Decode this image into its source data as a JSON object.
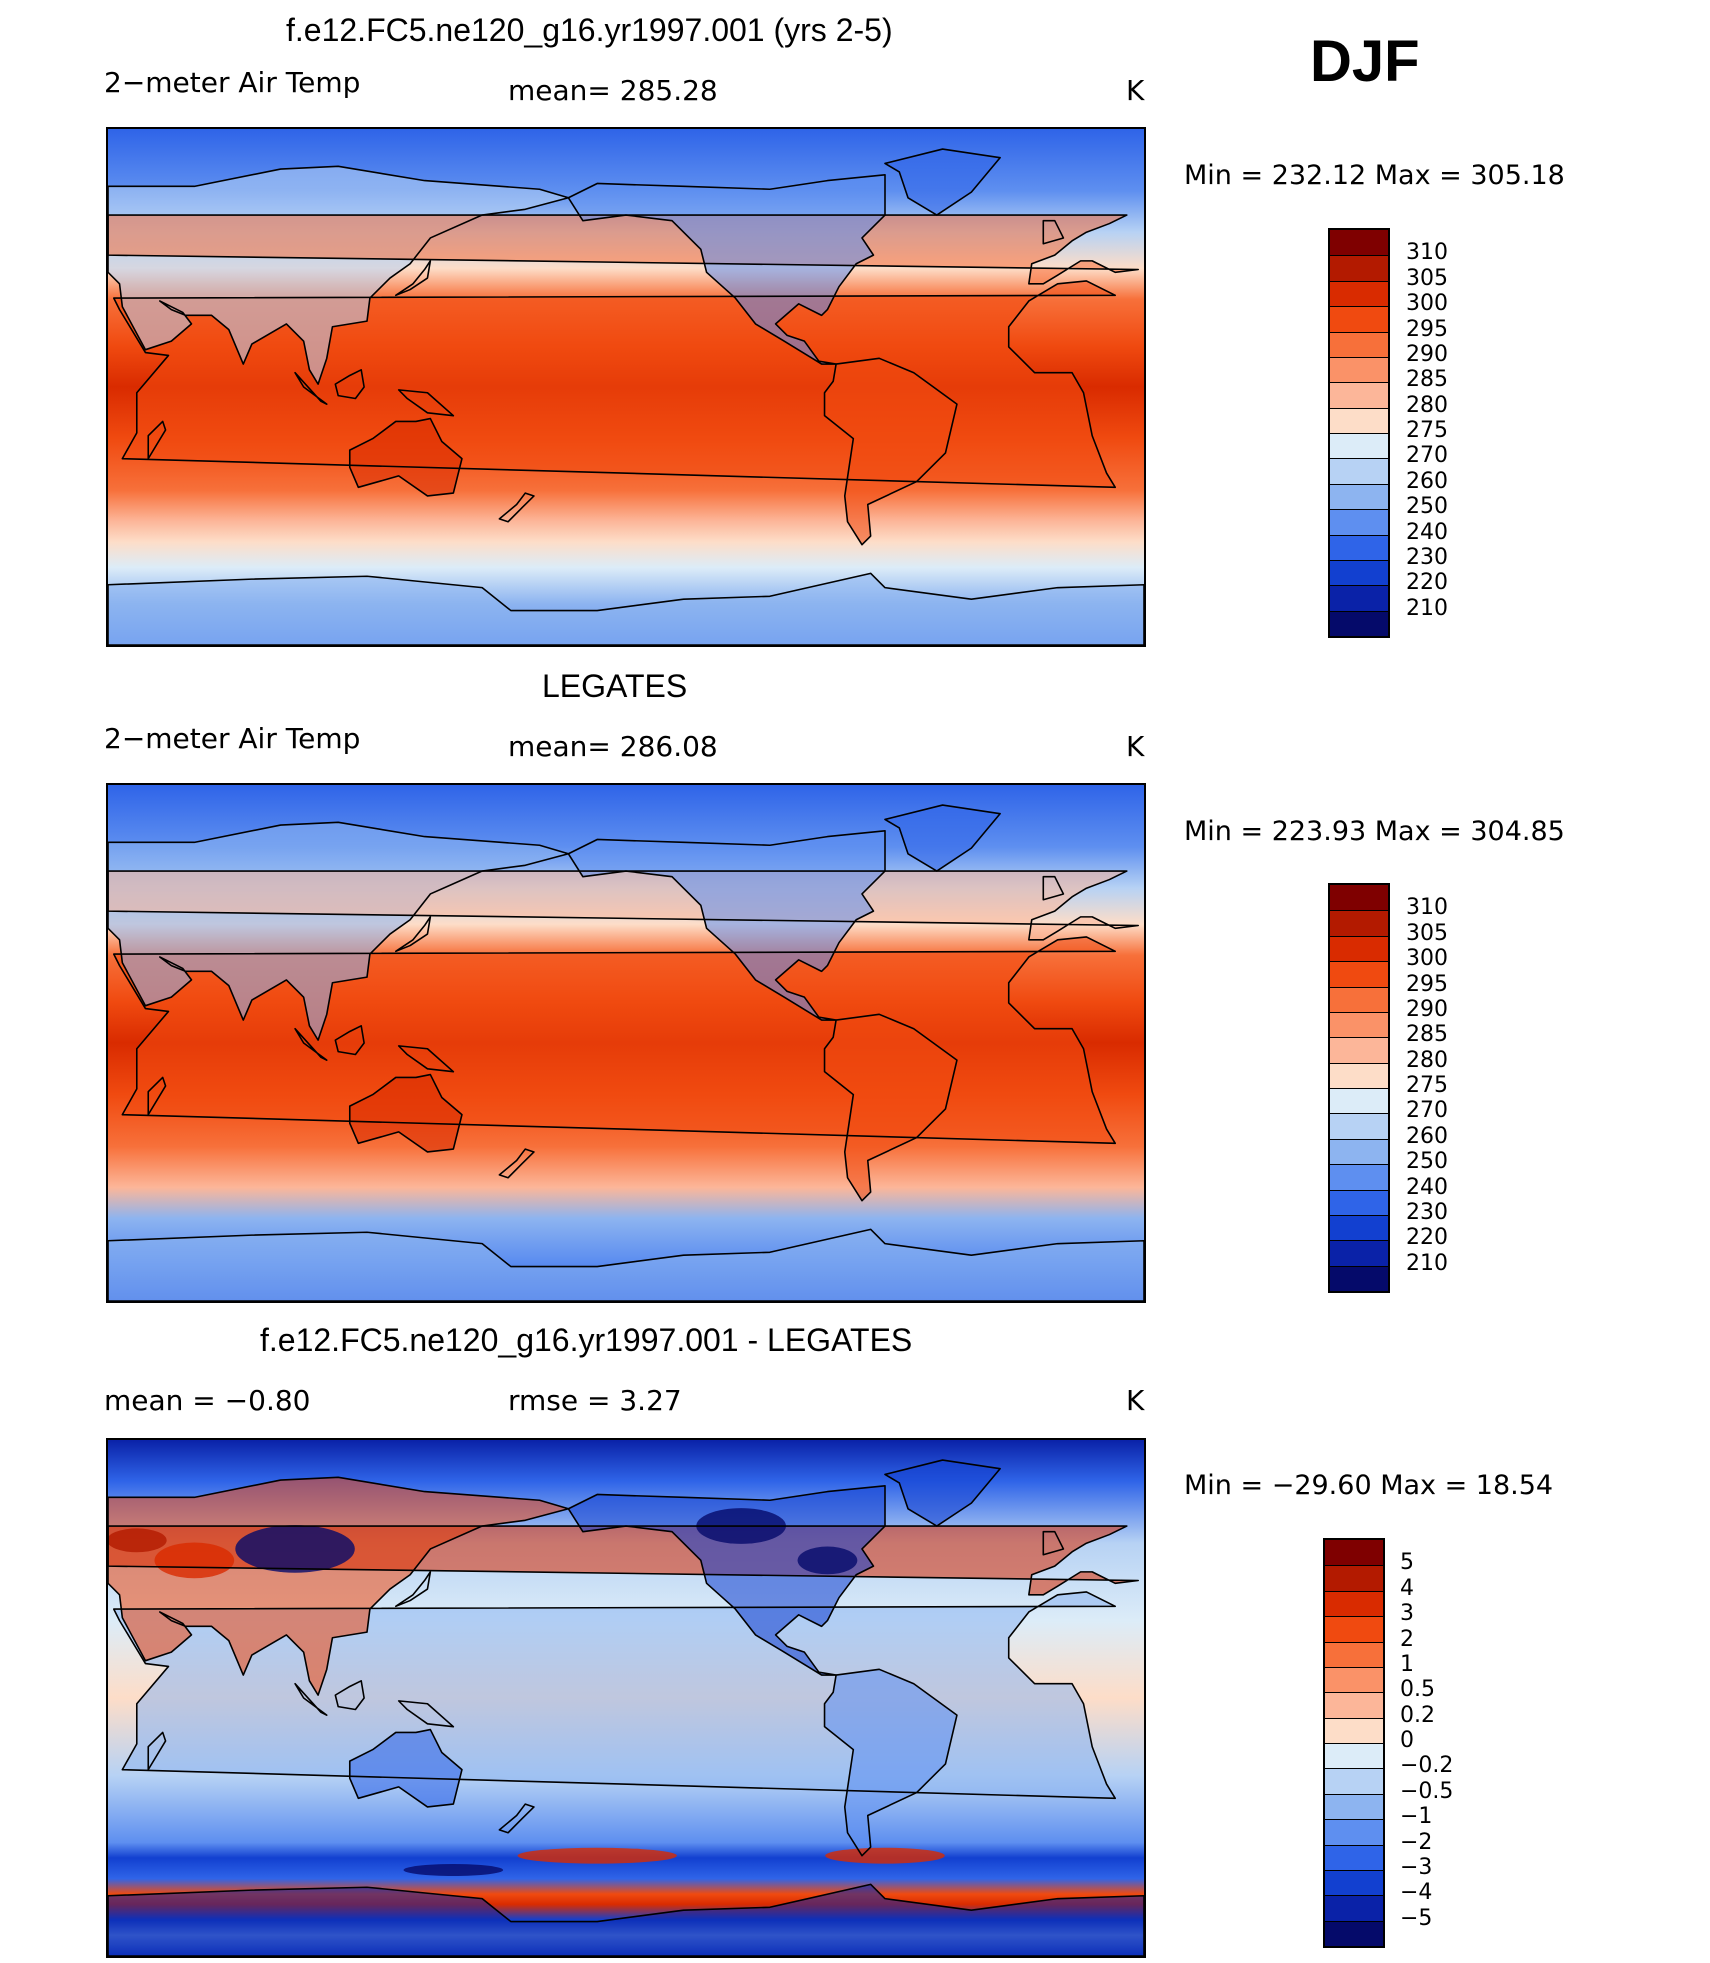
{
  "season": "DJF",
  "panels": [
    {
      "title": "f.e12.FC5.ne120_g16.yr1997.001 (yrs 2-5)",
      "left_label": "2−meter Air Temp",
      "center_label": "mean=  285.28",
      "right_label": "K",
      "minmax": "Min  =  232.12  Max  =  305.18",
      "kind": "model",
      "colorbar": {
        "labels": [
          "310",
          "305",
          "300",
          "295",
          "290",
          "285",
          "280",
          "275",
          "270",
          "260",
          "250",
          "240",
          "230",
          "220",
          "210"
        ],
        "colors": [
          "#7f0000",
          "#b31a00",
          "#d92b00",
          "#f04a10",
          "#f7703a",
          "#fa9268",
          "#fcb699",
          "#fdddc8",
          "#dcecf8",
          "#b7d2f4",
          "#8db4f0",
          "#5e8ff0",
          "#2f64e8",
          "#1240d0",
          "#0a22a8",
          "#050a6a"
        ]
      }
    },
    {
      "title": "LEGATES",
      "left_label": "2−meter Air Temp",
      "center_label": "mean=  286.08",
      "right_label": "K",
      "minmax": "Min  =  223.93  Max  =  304.85",
      "kind": "obs",
      "colorbar": {
        "labels": [
          "310",
          "305",
          "300",
          "295",
          "290",
          "285",
          "280",
          "275",
          "270",
          "260",
          "250",
          "240",
          "230",
          "220",
          "210"
        ],
        "colors": [
          "#7f0000",
          "#b31a00",
          "#d92b00",
          "#f04a10",
          "#f7703a",
          "#fa9268",
          "#fcb699",
          "#fdddc8",
          "#dcecf8",
          "#b7d2f4",
          "#8db4f0",
          "#5e8ff0",
          "#2f64e8",
          "#1240d0",
          "#0a22a8",
          "#050a6a"
        ]
      }
    },
    {
      "title": "f.e12.FC5.ne120_g16.yr1997.001 - LEGATES",
      "left_label": "mean  =     −0.80",
      "center_label": "rmse  =      3.27",
      "right_label": "K",
      "minmax": "Min  =  −29.60  Max  =     18.54",
      "kind": "diff",
      "colorbar": {
        "labels": [
          "5",
          "4",
          "3",
          "2",
          "1",
          "0.5",
          "0.2",
          "0",
          "−0.2",
          "−0.5",
          "−1",
          "−2",
          "−3",
          "−4",
          "−5"
        ],
        "colors": [
          "#7f0000",
          "#b31a00",
          "#d92b00",
          "#f04a10",
          "#f7703a",
          "#fa9268",
          "#fcb699",
          "#fdddc8",
          "#dcecf8",
          "#b7d2f4",
          "#8db4f0",
          "#5e8ff0",
          "#2f64e8",
          "#1240d0",
          "#0a22a8",
          "#050a6a"
        ]
      }
    }
  ]
}
